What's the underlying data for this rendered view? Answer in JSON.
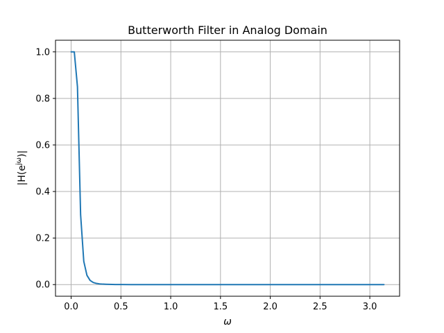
{
  "chart_data": {
    "type": "line",
    "title": "Butterworth Filter in Analog Domain",
    "xlabel": "ω",
    "ylabel_parts": {
      "prefix": "|H(e",
      "superscript": "jω",
      "suffix": ")|"
    },
    "xlim": [
      -0.157,
      3.299
    ],
    "ylim": [
      -0.05,
      1.05
    ],
    "xticks": [
      0.0,
      0.5,
      1.0,
      1.5,
      2.0,
      2.5,
      3.0
    ],
    "xtick_labels": [
      "0.0",
      "0.5",
      "1.0",
      "1.5",
      "2.0",
      "2.5",
      "3.0"
    ],
    "yticks": [
      0.0,
      0.2,
      0.4,
      0.6,
      0.8,
      1.0
    ],
    "ytick_labels": [
      "0.0",
      "0.2",
      "0.4",
      "0.6",
      "0.8",
      "1.0"
    ],
    "grid": true,
    "colors": {
      "line": "#1f77b4",
      "grid": "#b0b0b0"
    },
    "series": [
      {
        "x": [
          0.0,
          0.0317,
          0.0635,
          0.0952,
          0.127,
          0.1587,
          0.1904,
          0.2222,
          0.2539,
          0.2856,
          0.3174,
          0.3491,
          0.3808,
          0.4126,
          0.4443,
          0.476,
          0.5078,
          0.6,
          0.8,
          1.0,
          1.5,
          2.0,
          2.5,
          3.0,
          3.1416
        ],
        "y": [
          1.0,
          1.0,
          0.85,
          0.3,
          0.1,
          0.04,
          0.018,
          0.009,
          0.005,
          0.003,
          0.002,
          0.0013,
          0.0009,
          0.0006,
          0.0004,
          0.0003,
          0.0002,
          0.0001,
          0.0,
          0.0,
          0.0,
          0.0,
          0.0,
          0.0,
          0.0
        ]
      }
    ]
  }
}
